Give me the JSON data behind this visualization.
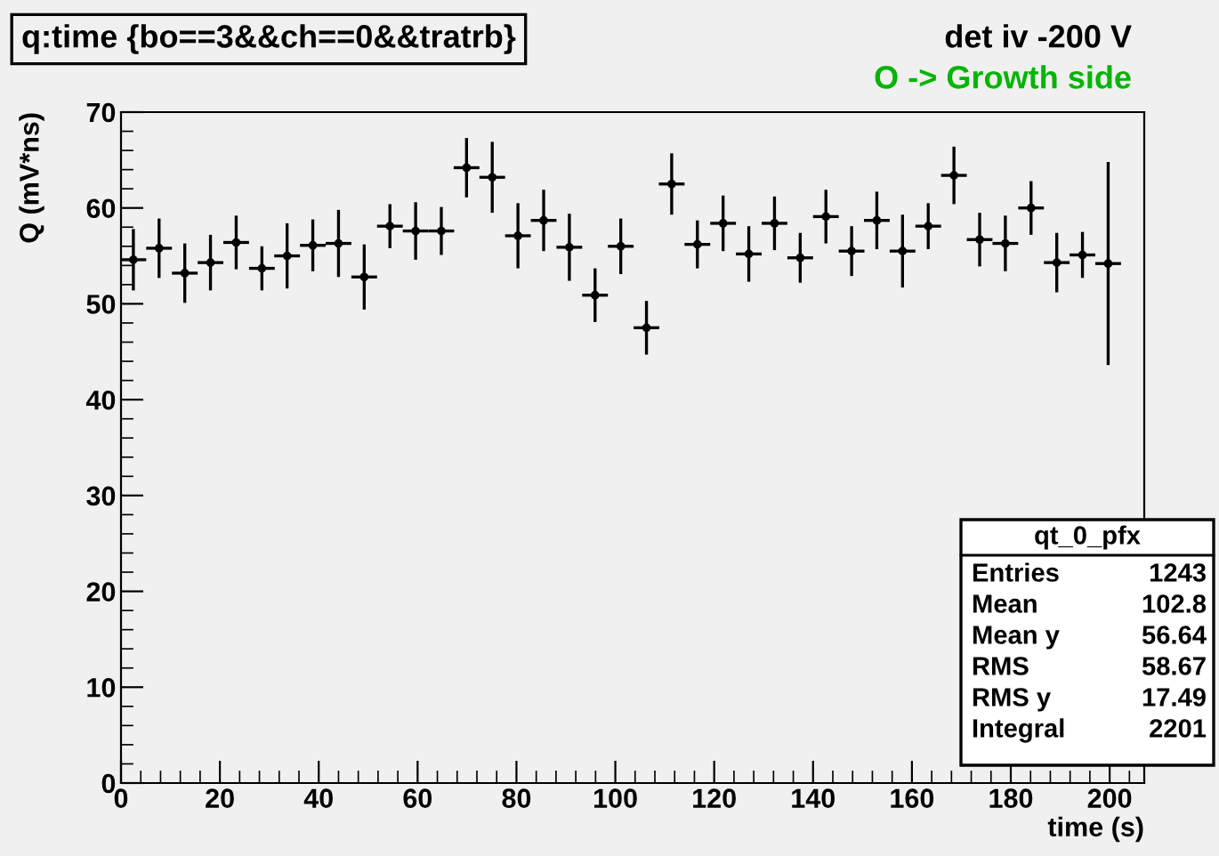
{
  "chart_data": {
    "type": "scatter",
    "title": "q:time {bo==3&&ch==0&&tratrb}",
    "xlabel": "time (s)",
    "ylabel": "Q (mV*ns)",
    "x": [
      2.5,
      7.7,
      12.9,
      18.1,
      23.3,
      28.5,
      33.6,
      38.8,
      44.0,
      49.2,
      54.4,
      59.6,
      64.8,
      69.9,
      75.1,
      80.3,
      85.5,
      90.7,
      95.9,
      101.1,
      106.3,
      111.4,
      116.6,
      121.8,
      127.0,
      132.2,
      137.4,
      142.6,
      147.8,
      152.9,
      158.1,
      163.3,
      168.5,
      173.7,
      178.9,
      184.1,
      189.3,
      194.5,
      199.7
    ],
    "series": [
      {
        "color": "#000000",
        "values": [
          54.6,
          55.8,
          53.2,
          54.3,
          56.4,
          53.7,
          55.0,
          56.1,
          56.3,
          52.8,
          58.1,
          57.6,
          57.6,
          64.2,
          63.2,
          57.1,
          58.7,
          55.9,
          50.9,
          56.0,
          47.5,
          62.5,
          56.2,
          58.4,
          55.2,
          58.4,
          54.8,
          59.1,
          55.5,
          58.7,
          55.5,
          58.1,
          63.4,
          56.7,
          56.3,
          60.0,
          54.3,
          55.1,
          54.2
        ],
        "errors": [
          3.2,
          3.1,
          3.1,
          2.9,
          2.8,
          2.3,
          3.4,
          2.7,
          3.5,
          3.4,
          2.3,
          3.0,
          2.5,
          3.1,
          3.7,
          3.4,
          3.2,
          3.5,
          2.8,
          2.9,
          2.8,
          3.2,
          2.5,
          2.9,
          2.9,
          2.8,
          2.6,
          2.8,
          2.6,
          3.0,
          3.8,
          2.4,
          3.0,
          2.8,
          2.9,
          2.8,
          3.1,
          2.4,
          10.6
        ],
        "xerrors": [
          2.6,
          2.6,
          2.6,
          2.6,
          2.6,
          2.6,
          2.6,
          2.6,
          2.6,
          2.6,
          2.6,
          2.6,
          2.6,
          2.6,
          2.6,
          2.6,
          2.6,
          2.6,
          2.6,
          2.6,
          2.6,
          2.6,
          2.6,
          2.6,
          2.6,
          2.6,
          2.6,
          2.6,
          2.6,
          2.6,
          2.6,
          2.6,
          2.6,
          2.6,
          2.6,
          2.6,
          2.6,
          2.6,
          2.6
        ]
      }
    ],
    "marker": "circle",
    "grid": false,
    "legend": false,
    "xlim": [
      0,
      207
    ],
    "ylim": [
      0,
      70
    ],
    "xticks": [
      0,
      20,
      40,
      60,
      80,
      100,
      120,
      140,
      160,
      180,
      200
    ],
    "yticks": [
      0,
      10,
      20,
      30,
      40,
      50,
      60,
      70
    ],
    "annotations": [
      "det iv -200 V",
      "O -> Growth side",
      "qt_0_pfx",
      "Entries",
      "1243",
      "Mean",
      "102.8",
      "Mean y",
      "56.64",
      "RMS",
      "58.67",
      "RMS y",
      "17.49",
      "Integral",
      "2201"
    ]
  }
}
